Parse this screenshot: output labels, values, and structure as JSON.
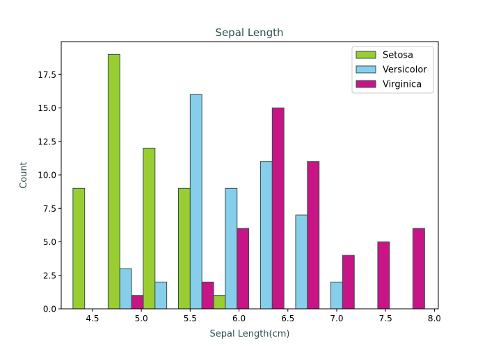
{
  "chart_data": {
    "type": "bar",
    "title": "Sepal Length",
    "xlabel": "Sepal Length(cm)",
    "ylabel": "Count",
    "xlim": [
      4.18,
      8.04
    ],
    "ylim": [
      0,
      19.95
    ],
    "x_ticks": [
      "4.5",
      "5.0",
      "5.5",
      "6.0",
      "6.5",
      "7.0",
      "7.5",
      "8.0"
    ],
    "y_ticks": [
      "0.0",
      "2.5",
      "5.0",
      "7.5",
      "10.0",
      "12.5",
      "15.0",
      "17.5"
    ],
    "bin_edges": [
      4.3,
      4.66,
      5.02,
      5.38,
      5.74,
      6.1,
      6.46,
      6.82,
      7.18,
      7.54,
      7.9
    ],
    "series": [
      {
        "name": "Setosa",
        "color": "#9acd32",
        "values": [
          9,
          19,
          12,
          9,
          1,
          0,
          0,
          0,
          0,
          0
        ]
      },
      {
        "name": "Versicolor",
        "color": "#87ceeb",
        "values": [
          0,
          3,
          2,
          16,
          9,
          11,
          7,
          2,
          0,
          0
        ]
      },
      {
        "name": "Virginica",
        "color": "#c71585",
        "values": [
          0,
          1,
          0,
          2,
          6,
          15,
          11,
          4,
          5,
          6
        ]
      }
    ],
    "legend_position": "top-right",
    "grid": false,
    "edge_color": "#2f4f4f",
    "text_color": "#2f4f4f"
  }
}
